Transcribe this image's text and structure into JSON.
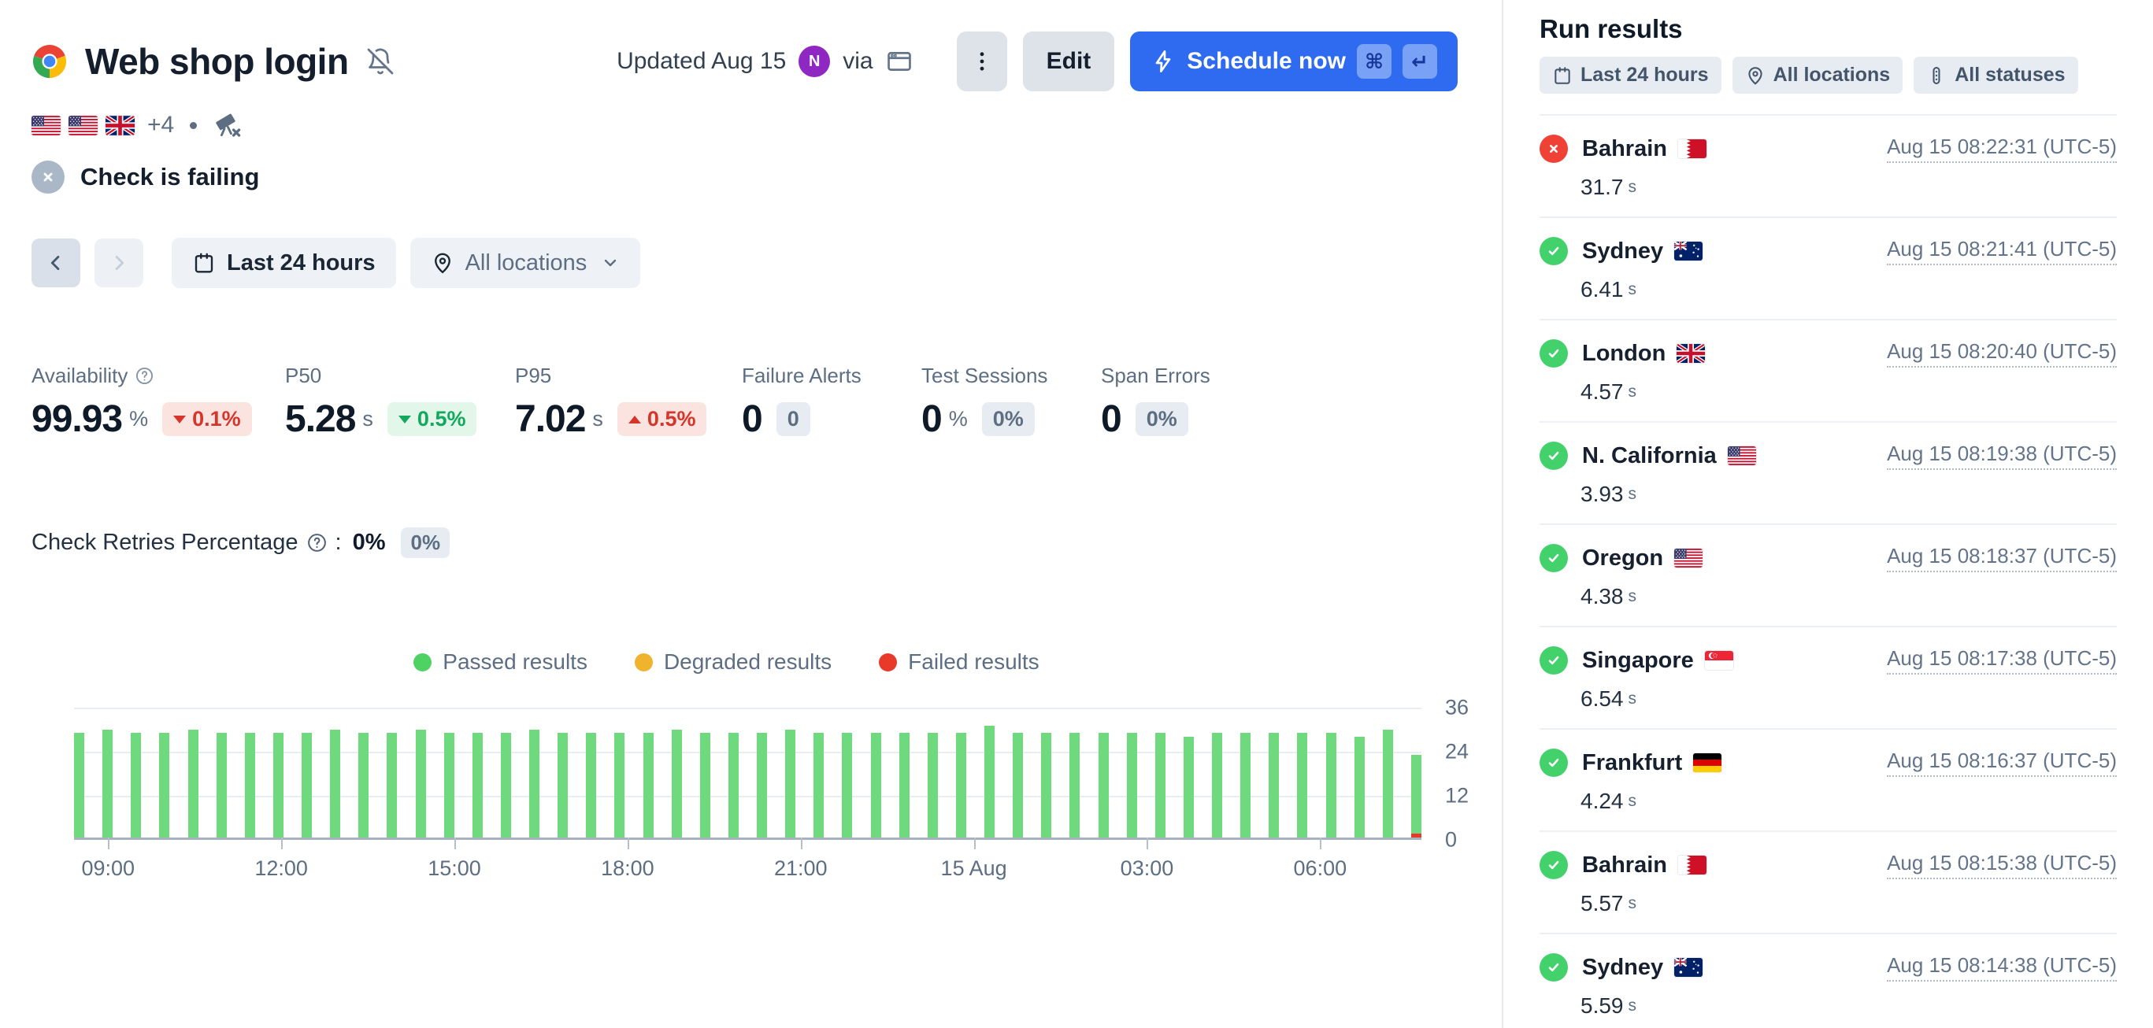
{
  "header": {
    "title": "Web shop login",
    "updated": "Updated Aug 15",
    "avatar_initial": "N",
    "via_label": "via",
    "flags": [
      "us",
      "us",
      "gb"
    ],
    "more_locations": "+4",
    "status_label": "Check is failing",
    "edit_label": "Edit",
    "schedule_label": "Schedule now",
    "kbd_cmd": "⌘",
    "kbd_enter": "↵"
  },
  "toolbar": {
    "time_range": "Last 24 hours",
    "locations": "All locations"
  },
  "stats": [
    {
      "label": "Availability",
      "value": "99.93",
      "unit": "%",
      "badge": {
        "text": "0.1%",
        "direction": "down",
        "tone": "red"
      }
    },
    {
      "label": "P50",
      "value": "5.28",
      "unit": "s",
      "badge": {
        "text": "0.5%",
        "direction": "down",
        "tone": "green"
      }
    },
    {
      "label": "P95",
      "value": "7.02",
      "unit": "s",
      "badge": {
        "text": "0.5%",
        "direction": "up",
        "tone": "red"
      }
    },
    {
      "label": "Failure Alerts",
      "value": "0",
      "unit": "",
      "badge": {
        "text": "0",
        "tone": "gray"
      }
    },
    {
      "label": "Test Sessions",
      "value": "0",
      "unit": "%",
      "badge": {
        "text": "0%",
        "tone": "gray"
      }
    },
    {
      "label": "Span Errors",
      "value": "0",
      "unit": "",
      "badge": {
        "text": "0%",
        "tone": "gray"
      }
    }
  ],
  "retries": {
    "label": "Check Retries Percentage",
    "suffix": ":",
    "value": "0%",
    "badge": "0%"
  },
  "chart_data": {
    "type": "bar",
    "stacked": true,
    "legend": [
      {
        "label": "Passed results",
        "color": "#4fd264"
      },
      {
        "label": "Degraded results",
        "color": "#f0b32e"
      },
      {
        "label": "Failed results",
        "color": "#e8392b"
      }
    ],
    "x_ticks": [
      "09:00",
      "12:00",
      "15:00",
      "18:00",
      "21:00",
      "15 Aug",
      "03:00",
      "06:00"
    ],
    "y_ticks": [
      36,
      24,
      12,
      0
    ],
    "ylim": [
      0,
      36
    ],
    "bar_interval_minutes": 30,
    "series": [
      {
        "name": "Passed results",
        "color": "#6fd97e",
        "values": [
          29,
          30,
          29,
          29,
          30,
          29,
          29,
          29,
          29,
          30,
          29,
          29,
          30,
          29,
          29,
          29,
          30,
          29,
          29,
          29,
          29,
          30,
          29,
          29,
          29,
          30,
          29,
          29,
          29,
          29,
          29,
          29,
          31,
          29,
          29,
          29,
          29,
          29,
          29,
          28,
          29,
          29,
          29,
          29,
          29,
          28,
          30,
          22
        ]
      },
      {
        "name": "Failed results",
        "color": "#e8392b",
        "values": [
          0,
          0,
          0,
          0,
          0,
          0,
          0,
          0,
          0,
          0,
          0,
          0,
          0,
          0,
          0,
          0,
          0,
          0,
          0,
          0,
          0,
          0,
          0,
          0,
          0,
          0,
          0,
          0,
          0,
          0,
          0,
          0,
          0,
          0,
          0,
          0,
          0,
          0,
          0,
          0,
          0,
          0,
          0,
          0,
          0,
          0,
          0,
          1
        ]
      }
    ]
  },
  "run_results": {
    "title": "Run results",
    "duration_unit": "s",
    "filters": [
      {
        "label": "Last 24 hours",
        "icon": "calendar"
      },
      {
        "label": "All locations",
        "icon": "pin"
      },
      {
        "label": "All statuses",
        "icon": "statuses"
      }
    ],
    "runs": [
      {
        "status": "failed",
        "location": "Bahrain",
        "flag": "bh",
        "timestamp": "Aug 15 08:22:31 (UTC-5)",
        "duration": "31.7"
      },
      {
        "status": "passed",
        "location": "Sydney",
        "flag": "au",
        "timestamp": "Aug 15 08:21:41 (UTC-5)",
        "duration": "6.41"
      },
      {
        "status": "passed",
        "location": "London",
        "flag": "gb",
        "timestamp": "Aug 15 08:20:40 (UTC-5)",
        "duration": "4.57"
      },
      {
        "status": "passed",
        "location": "N. California",
        "flag": "us",
        "timestamp": "Aug 15 08:19:38 (UTC-5)",
        "duration": "3.93"
      },
      {
        "status": "passed",
        "location": "Oregon",
        "flag": "us",
        "timestamp": "Aug 15 08:18:37 (UTC-5)",
        "duration": "4.38"
      },
      {
        "status": "passed",
        "location": "Singapore",
        "flag": "sg",
        "timestamp": "Aug 15 08:17:38 (UTC-5)",
        "duration": "6.54"
      },
      {
        "status": "passed",
        "location": "Frankfurt",
        "flag": "de",
        "timestamp": "Aug 15 08:16:37 (UTC-5)",
        "duration": "4.24"
      },
      {
        "status": "passed",
        "location": "Bahrain",
        "flag": "bh",
        "timestamp": "Aug 15 08:15:38 (UTC-5)",
        "duration": "5.57"
      },
      {
        "status": "passed",
        "location": "Sydney",
        "flag": "au",
        "timestamp": "Aug 15 08:14:38 (UTC-5)",
        "duration": "5.59"
      }
    ]
  }
}
